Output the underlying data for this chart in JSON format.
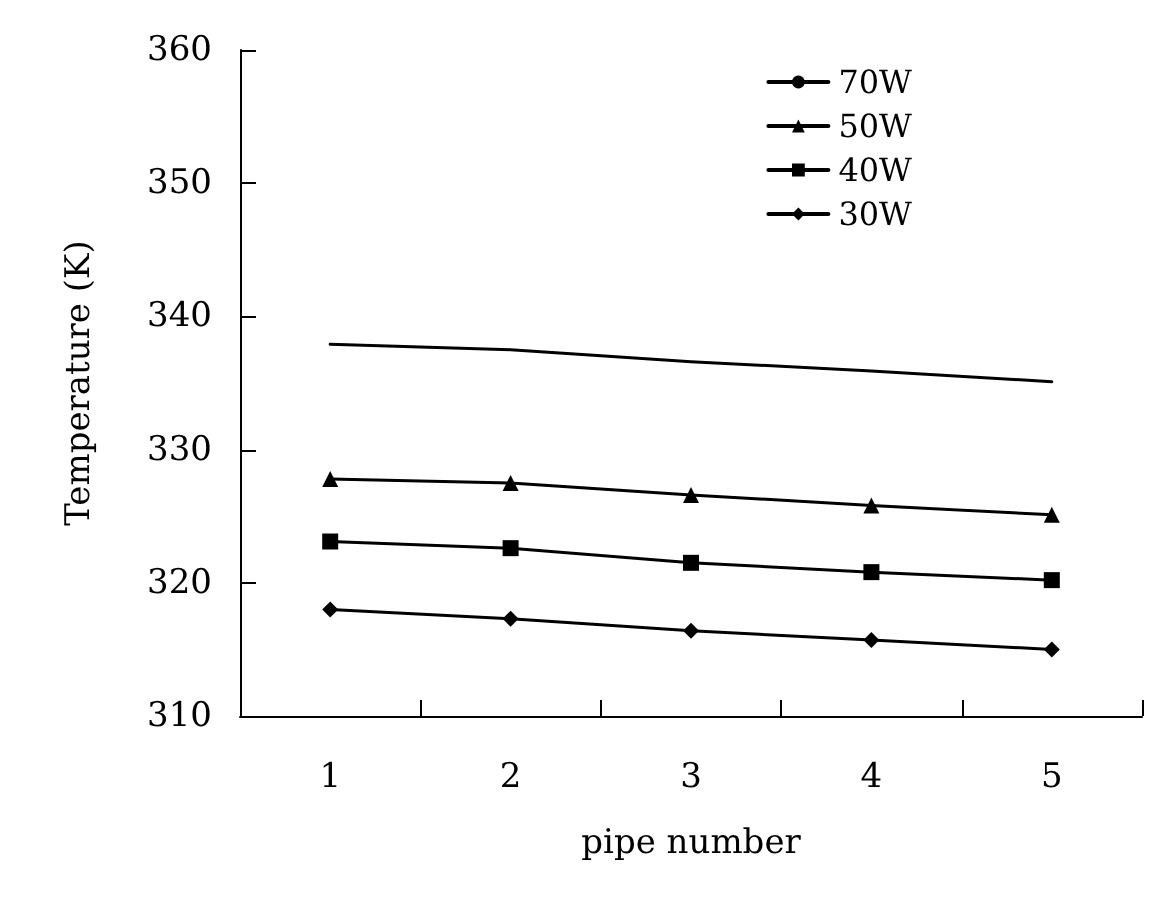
{
  "chart_data": {
    "type": "line",
    "xlabel": "pipe number",
    "ylabel": "Temperature (K)",
    "categories": [
      "1",
      "2",
      "3",
      "4",
      "5"
    ],
    "series": [
      {
        "name": "70W",
        "color": "#000000",
        "marker": "none",
        "values": [
          337.9,
          337.5,
          336.6,
          335.9,
          335.1
        ]
      },
      {
        "name": "50W",
        "color": "#000000",
        "marker": "triangle",
        "values": [
          327.8,
          327.5,
          326.6,
          325.8,
          325.1
        ]
      },
      {
        "name": "40W",
        "color": "#000000",
        "marker": "square",
        "values": [
          323.1,
          322.6,
          321.5,
          320.8,
          320.2
        ]
      },
      {
        "name": "30W",
        "color": "#000000",
        "marker": "diamond",
        "values": [
          318.0,
          317.3,
          316.4,
          315.7,
          315.0
        ]
      }
    ],
    "ylim": [
      310,
      360
    ],
    "yticks": [
      310,
      320,
      330,
      340,
      350,
      360
    ],
    "grid": false,
    "legend": "top right",
    "line_style": "solid"
  }
}
